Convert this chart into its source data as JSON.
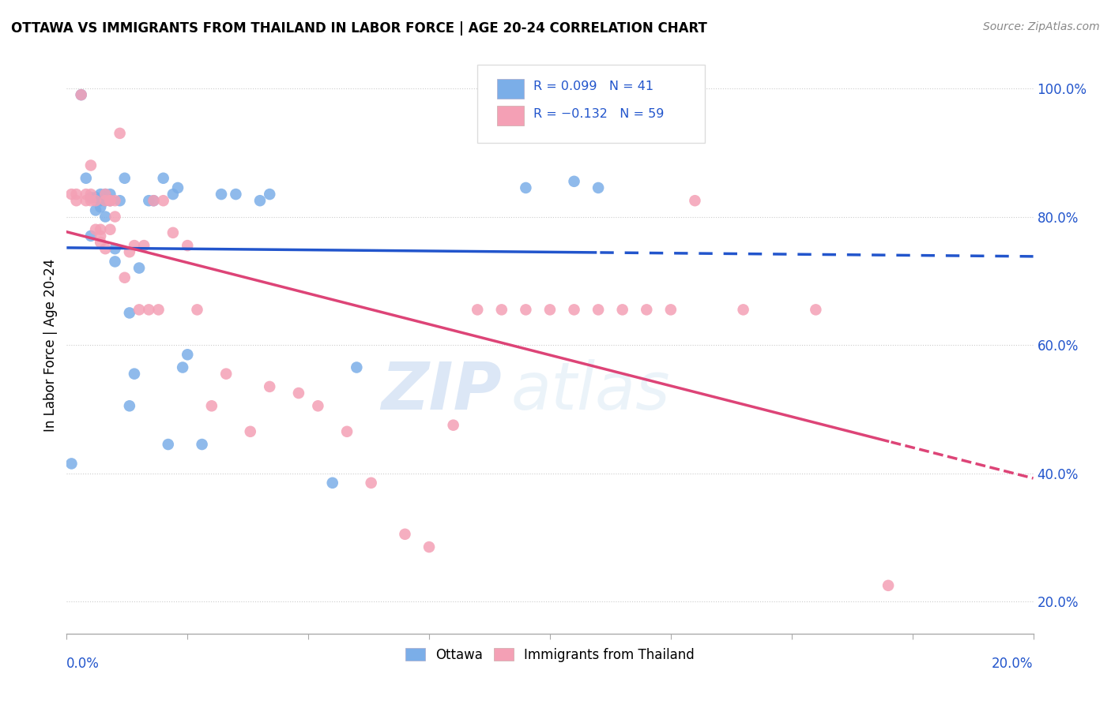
{
  "title": "OTTAWA VS IMMIGRANTS FROM THAILAND IN LABOR FORCE | AGE 20-24 CORRELATION CHART",
  "source": "Source: ZipAtlas.com",
  "ylabel": "In Labor Force | Age 20-24",
  "xlim": [
    0.0,
    0.2
  ],
  "ylim": [
    0.15,
    1.05
  ],
  "yticks": [
    0.2,
    0.4,
    0.6,
    0.8,
    1.0
  ],
  "ytick_labels": [
    "20.0%",
    "40.0%",
    "60.0%",
    "80.0%",
    "100.0%"
  ],
  "ottawa_color": "#7baee8",
  "thailand_color": "#f4a0b5",
  "ottawa_line_color": "#2255cc",
  "thailand_line_color": "#dd4477",
  "legend_text_color": "#2255cc",
  "background_color": "#ffffff",
  "watermark": "ZIPatlas",
  "ottawa_x": [
    0.001,
    0.003,
    0.004,
    0.005,
    0.005,
    0.006,
    0.006,
    0.007,
    0.007,
    0.007,
    0.008,
    0.008,
    0.008,
    0.009,
    0.009,
    0.01,
    0.01,
    0.011,
    0.012,
    0.013,
    0.013,
    0.014,
    0.015,
    0.017,
    0.018,
    0.02,
    0.021,
    0.022,
    0.023,
    0.024,
    0.025,
    0.028,
    0.032,
    0.035,
    0.04,
    0.042,
    0.055,
    0.06,
    0.095,
    0.105,
    0.11
  ],
  "ottawa_y": [
    0.415,
    0.99,
    0.86,
    0.83,
    0.77,
    0.83,
    0.81,
    0.835,
    0.825,
    0.815,
    0.835,
    0.825,
    0.8,
    0.835,
    0.825,
    0.75,
    0.73,
    0.825,
    0.86,
    0.65,
    0.505,
    0.555,
    0.72,
    0.825,
    0.825,
    0.86,
    0.445,
    0.835,
    0.845,
    0.565,
    0.585,
    0.445,
    0.835,
    0.835,
    0.825,
    0.835,
    0.385,
    0.565,
    0.845,
    0.855,
    0.845
  ],
  "thailand_x": [
    0.001,
    0.002,
    0.002,
    0.003,
    0.004,
    0.004,
    0.005,
    0.005,
    0.005,
    0.006,
    0.006,
    0.007,
    0.007,
    0.007,
    0.008,
    0.008,
    0.008,
    0.009,
    0.009,
    0.009,
    0.01,
    0.01,
    0.011,
    0.012,
    0.013,
    0.014,
    0.015,
    0.016,
    0.017,
    0.018,
    0.019,
    0.02,
    0.022,
    0.025,
    0.027,
    0.03,
    0.033,
    0.038,
    0.042,
    0.048,
    0.052,
    0.058,
    0.063,
    0.07,
    0.075,
    0.08,
    0.085,
    0.09,
    0.095,
    0.1,
    0.105,
    0.11,
    0.115,
    0.12,
    0.125,
    0.13,
    0.14,
    0.155,
    0.17
  ],
  "thailand_y": [
    0.835,
    0.835,
    0.825,
    0.99,
    0.835,
    0.825,
    0.88,
    0.835,
    0.825,
    0.825,
    0.78,
    0.78,
    0.77,
    0.76,
    0.835,
    0.825,
    0.75,
    0.825,
    0.825,
    0.78,
    0.825,
    0.8,
    0.93,
    0.705,
    0.745,
    0.755,
    0.655,
    0.755,
    0.655,
    0.825,
    0.655,
    0.825,
    0.775,
    0.755,
    0.655,
    0.505,
    0.555,
    0.465,
    0.535,
    0.525,
    0.505,
    0.465,
    0.385,
    0.305,
    0.285,
    0.475,
    0.655,
    0.655,
    0.655,
    0.655,
    0.655,
    0.655,
    0.655,
    0.655,
    0.655,
    0.825,
    0.655,
    0.655,
    0.225
  ]
}
